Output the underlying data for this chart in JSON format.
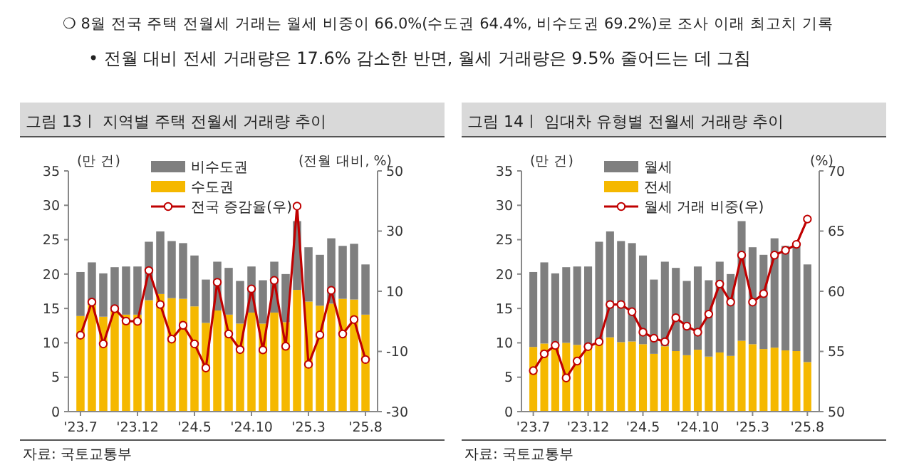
{
  "chart_data": [
    {
      "type": "other",
      "annotations": [
        "❍ 8월 전국 주택 전월세 거래는 월세 비중이 66.0%(수도권 64.4%, 비수도권 69.2%)로 조사 이래 최고치 기록",
        "• 전월 대비 전세 거래량은 17.6% 감소한 반면, 월세 거래량은 9.5% 줄어드는 데 그침"
      ]
    },
    {
      "type": "bar",
      "title": "그림 13ㅣ 지역별 주택 전월세 거래량 추이",
      "ylabel": "(만 건)",
      "y2label": "(전월 대비, %)",
      "stacked": true,
      "legend": "top left",
      "grid": false,
      "categories": [
        "'23.7",
        null,
        null,
        null,
        null,
        "'23.12",
        null,
        null,
        null,
        null,
        "'24.5",
        null,
        null,
        null,
        null,
        "'24.10",
        null,
        null,
        null,
        null,
        "'25.3",
        null,
        null,
        null,
        null,
        "'25.8"
      ],
      "series": [
        {
          "name": "수도권",
          "type": "bar",
          "color": "#f5b800",
          "values": [
            13.9,
            15.5,
            13.8,
            14.6,
            14.1,
            14.1,
            16.2,
            17.1,
            16.5,
            16.4,
            15.3,
            12.9,
            14.7,
            14.1,
            12.8,
            14.4,
            12.8,
            14.4,
            13.0,
            17.7,
            16.0,
            15.4,
            15.7,
            16.4,
            16.3,
            14.1
          ]
        },
        {
          "name": "비수도권",
          "type": "bar",
          "color": "#7f7f7f",
          "values": [
            6.4,
            6.2,
            6.3,
            6.4,
            7.0,
            7.0,
            8.5,
            9.1,
            8.3,
            8.1,
            7.4,
            6.3,
            7.1,
            6.8,
            6.2,
            6.7,
            6.3,
            7.4,
            7.0,
            10.0,
            7.9,
            7.4,
            9.5,
            7.7,
            8.1,
            7.3
          ]
        },
        {
          "name": "전국 증감율(우)",
          "type": "line",
          "axis": "y2",
          "marker": "circle",
          "color": "#c00000",
          "values": [
            -4.6,
            6.4,
            -7.5,
            4.2,
            0.1,
            0,
            16.9,
            5.6,
            -5.9,
            -1.3,
            -7.5,
            -15.5,
            13,
            -4.2,
            -9.4,
            10.8,
            -9.5,
            13.6,
            -8.3,
            38.3,
            -14.3,
            -4.5,
            10.3,
            -4.2,
            0.6,
            -12.7
          ]
        }
      ],
      "ylim": [
        0,
        35
      ],
      "yticks": [
        0,
        5,
        10,
        15,
        20,
        25,
        30,
        35
      ],
      "y2lim": [
        -30,
        50
      ],
      "y2ticks": [
        -30,
        -10,
        10,
        30,
        50
      ],
      "annotations": [
        "자료: 국토교통부"
      ]
    },
    {
      "type": "bar",
      "title": "그림 14ㅣ 임대차 유형별 전월세 거래량 추이",
      "ylabel": "(만 건)",
      "y2label": "(%)",
      "stacked": true,
      "legend": "top left",
      "grid": false,
      "categories": [
        "'23.7",
        null,
        null,
        null,
        null,
        "'23.12",
        null,
        null,
        null,
        null,
        "'24.5",
        null,
        null,
        null,
        null,
        "'24.10",
        null,
        null,
        null,
        null,
        "'25.3",
        null,
        null,
        null,
        null,
        "'25.8"
      ],
      "series": [
        {
          "name": "전세",
          "type": "bar",
          "color": "#f5b800",
          "values": [
            9.4,
            9.9,
            9.6,
            10.0,
            9.7,
            9.7,
            10.1,
            10.8,
            10.1,
            10.2,
            9.8,
            8.4,
            9.5,
            8.8,
            8.2,
            9.0,
            8.0,
            8.6,
            8.1,
            10.3,
            9.8,
            9.1,
            9.3,
            8.9,
            8.8,
            7.2
          ]
        },
        {
          "name": "월세",
          "type": "bar",
          "color": "#7f7f7f",
          "values": [
            10.9,
            11.8,
            10.5,
            11.0,
            11.4,
            11.4,
            14.6,
            15.4,
            14.7,
            14.3,
            12.9,
            10.8,
            12.3,
            12.1,
            10.8,
            12.1,
            11.1,
            13.2,
            11.9,
            17.4,
            14.1,
            13.7,
            15.9,
            15.2,
            15.6,
            14.2
          ]
        },
        {
          "name": "월세 거래 비중(우)",
          "type": "line",
          "axis": "y2",
          "marker": "circle",
          "color": "#c00000",
          "values": [
            53.4,
            54.8,
            55.5,
            52.8,
            54.2,
            55.4,
            55.8,
            58.9,
            58.9,
            58.3,
            56.6,
            56.1,
            55.8,
            57.8,
            57.1,
            56.6,
            58.1,
            60.6,
            59.1,
            63.0,
            59.1,
            59.8,
            63.0,
            63.4,
            63.9,
            66.0
          ]
        }
      ],
      "ylim": [
        0,
        35
      ],
      "yticks": [
        0,
        5,
        10,
        15,
        20,
        25,
        30,
        35
      ],
      "y2lim": [
        50,
        70
      ],
      "y2ticks": [
        50,
        55,
        60,
        65,
        70
      ],
      "annotations": [
        "자료: 국토교통부"
      ]
    }
  ]
}
